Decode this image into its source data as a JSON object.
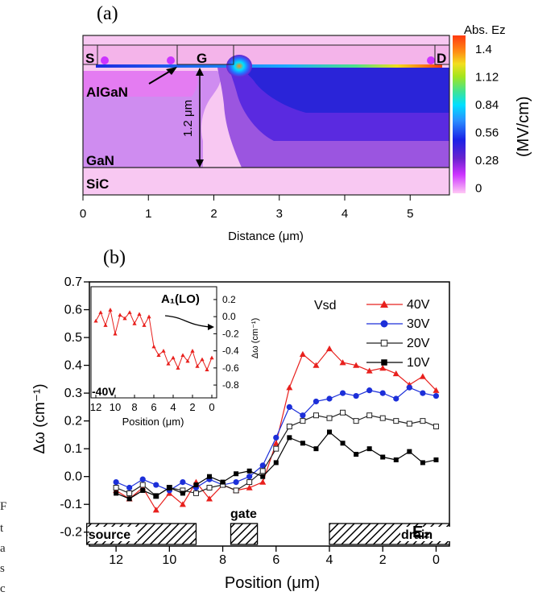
{
  "panel_labels": {
    "a": "(a)",
    "b": "(b)"
  },
  "cut_off_text": [
    "F",
    "t",
    "a",
    "s",
    "c"
  ],
  "chart_data": [
    {
      "type": "heatmap",
      "panel": "(a)",
      "xlabel": "Distance (μm)",
      "xlim": [
        0,
        5.6
      ],
      "xticks": [
        0,
        1,
        2,
        3,
        4,
        5
      ],
      "region_labels": {
        "source": "S",
        "gate": "G",
        "drain": "D",
        "barrier": "AlGaN",
        "buffer": "GaN",
        "substrate": "SiC"
      },
      "thickness_annotation": "1.2 μm",
      "colorbar": {
        "title": "Abs. Ez",
        "unit": "(MV/cm)",
        "tick_labels": [
          "1.4",
          "1.12",
          "0.84",
          "0.56",
          "0.28",
          "0"
        ],
        "colors": [
          "#ffc9f5",
          "#cc33ff",
          "#6a23cf",
          "#1a22e6",
          "#2a8fff",
          "#00e0ff",
          "#3be39a",
          "#a4e51e",
          "#f2de1e",
          "#ff8a14",
          "#ff3a10"
        ]
      }
    },
    {
      "type": "line",
      "panel": "(b)",
      "xlabel": "Position (μm)",
      "ylabel": "Δω (cm⁻¹)",
      "xlim": [
        13,
        -0.5
      ],
      "ylim": [
        -0.25,
        0.7
      ],
      "xticks": [
        12,
        10,
        8,
        6,
        4,
        2,
        0
      ],
      "yticks": [
        "0.7",
        "0.6",
        "0.5",
        "0.4",
        "0.3",
        "0.2",
        "0.1",
        "0.0",
        "-0.1",
        "-0.2"
      ],
      "legend_title": "Vsd",
      "mode_label": "E₂",
      "regions": [
        {
          "label": "source",
          "from": 13.1,
          "to": 9.0
        },
        {
          "label": "gate",
          "from": 7.7,
          "to": 6.7
        },
        {
          "label": "drain",
          "from": 4.0,
          "to": -0.5
        }
      ],
      "series": [
        {
          "name": "40V",
          "color": "#e8201d",
          "marker": "triangle",
          "x": [
            12.0,
            11.5,
            11.0,
            10.5,
            10.0,
            9.5,
            9.0,
            8.5,
            8.0,
            7.5,
            7.0,
            6.5,
            6.0,
            5.5,
            5.0,
            4.5,
            4.0,
            3.5,
            3.0,
            2.5,
            2.0,
            1.5,
            1.0,
            0.5,
            0.0
          ],
          "y": [
            -0.05,
            -0.08,
            -0.04,
            -0.12,
            -0.06,
            -0.1,
            -0.02,
            -0.08,
            -0.03,
            -0.05,
            -0.04,
            -0.02,
            0.12,
            0.32,
            0.44,
            0.4,
            0.46,
            0.41,
            0.4,
            0.38,
            0.39,
            0.37,
            0.33,
            0.36,
            0.31
          ]
        },
        {
          "name": "30V",
          "color": "#1c2fd9",
          "marker": "circle",
          "x": [
            12.0,
            11.5,
            11.0,
            10.5,
            10.0,
            9.5,
            9.0,
            8.5,
            8.0,
            7.5,
            7.0,
            6.5,
            6.0,
            5.5,
            5.0,
            4.5,
            4.0,
            3.5,
            3.0,
            2.5,
            2.0,
            1.5,
            1.0,
            0.5,
            0.0
          ],
          "y": [
            -0.02,
            -0.04,
            -0.01,
            -0.03,
            -0.05,
            -0.02,
            -0.04,
            -0.01,
            -0.03,
            -0.02,
            0.0,
            0.04,
            0.14,
            0.25,
            0.22,
            0.27,
            0.28,
            0.3,
            0.29,
            0.31,
            0.3,
            0.28,
            0.32,
            0.3,
            0.29
          ]
        },
        {
          "name": "20V",
          "color": "#222222",
          "marker": "open-square",
          "x": [
            12.0,
            11.5,
            11.0,
            10.5,
            10.0,
            9.5,
            9.0,
            8.5,
            8.0,
            7.5,
            7.0,
            6.5,
            6.0,
            5.5,
            5.0,
            4.5,
            4.0,
            3.5,
            3.0,
            2.5,
            2.0,
            1.5,
            1.0,
            0.5,
            0.0
          ],
          "y": [
            -0.04,
            -0.06,
            -0.03,
            -0.07,
            -0.04,
            -0.05,
            -0.06,
            -0.04,
            -0.03,
            -0.05,
            -0.02,
            0.02,
            0.1,
            0.18,
            0.2,
            0.22,
            0.21,
            0.23,
            0.2,
            0.22,
            0.21,
            0.2,
            0.19,
            0.2,
            0.18
          ]
        },
        {
          "name": "10V",
          "color": "#000000",
          "marker": "square",
          "x": [
            12.0,
            11.5,
            11.0,
            10.5,
            10.0,
            9.5,
            9.0,
            8.5,
            8.0,
            7.5,
            7.0,
            6.5,
            6.0,
            5.5,
            5.0,
            4.5,
            4.0,
            3.5,
            3.0,
            2.5,
            2.0,
            1.5,
            1.0,
            0.5,
            0.0
          ],
          "y": [
            -0.06,
            -0.08,
            -0.05,
            -0.07,
            -0.04,
            -0.06,
            -0.03,
            0.0,
            -0.02,
            0.01,
            0.02,
            0.0,
            0.05,
            0.14,
            0.12,
            0.1,
            0.16,
            0.12,
            0.08,
            0.1,
            0.07,
            0.06,
            0.09,
            0.05,
            0.06
          ]
        }
      ]
    },
    {
      "type": "line",
      "panel": "inset",
      "xlabel": "Position (μm)",
      "ylabel": "Δω (cm⁻¹)",
      "title": "A₁(LO)",
      "annotation": "-40V",
      "xlim": [
        12.5,
        -0.5
      ],
      "ylim": [
        -0.95,
        0.35
      ],
      "xticks": [
        12,
        10,
        8,
        6,
        4,
        2,
        0
      ],
      "yticks": [
        "0.2",
        "0.0",
        "-0.2",
        "-0.4",
        "-0.6",
        "-0.8"
      ],
      "series": [
        {
          "name": "-40V",
          "color": "#e8201d",
          "marker": "triangle",
          "x": [
            12.0,
            11.5,
            11.0,
            10.5,
            10.0,
            9.5,
            9.0,
            8.5,
            8.0,
            7.5,
            7.0,
            6.5,
            6.0,
            5.5,
            5.0,
            4.5,
            4.0,
            3.5,
            3.0,
            2.5,
            2.0,
            1.5,
            1.0,
            0.5,
            0.0
          ],
          "y": [
            -0.05,
            0.05,
            -0.1,
            0.08,
            -0.2,
            0.02,
            -0.02,
            0.05,
            -0.08,
            0.03,
            -0.1,
            0.0,
            -0.35,
            -0.45,
            -0.4,
            -0.55,
            -0.48,
            -0.6,
            -0.45,
            -0.52,
            -0.4,
            -0.58,
            -0.5,
            -0.62,
            -0.48
          ]
        }
      ]
    }
  ]
}
